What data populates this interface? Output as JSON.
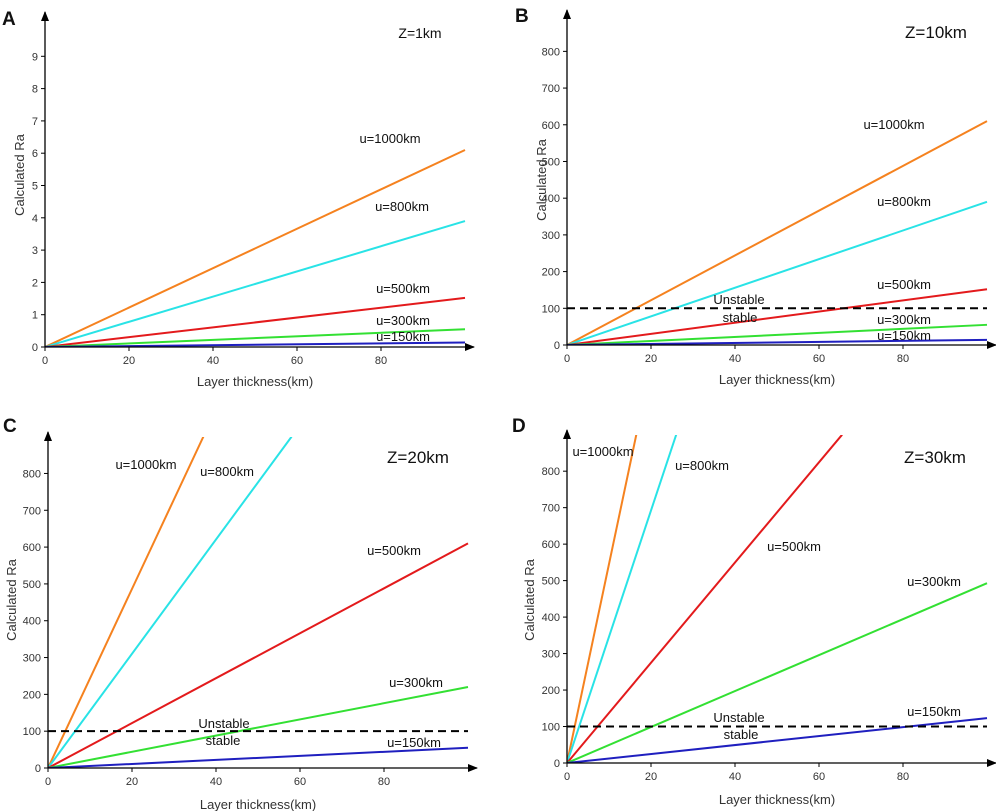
{
  "figure": {
    "axis_color": "#000000",
    "threshold_color": "#000000"
  },
  "chart_data": [
    {
      "type": "line",
      "panel": "A",
      "title": "Z=1km",
      "xlabel": "Layer thickness(km)",
      "ylabel": "Calculated Ra",
      "xlim": [
        0,
        100
      ],
      "ylim": [
        0,
        10
      ],
      "xticks": [
        0,
        20,
        40,
        60,
        80
      ],
      "yticks": [
        0,
        1,
        2,
        3,
        4,
        5,
        6,
        7,
        8,
        9
      ],
      "grid": false,
      "threshold": null,
      "series": [
        {
          "name": "u=1000km",
          "color": "#f5821f",
          "x": [
            0,
            100
          ],
          "y": [
            0,
            6.1
          ]
        },
        {
          "name": "u=800km",
          "color": "#29e3e6",
          "x": [
            0,
            100
          ],
          "y": [
            0,
            3.9
          ]
        },
        {
          "name": "u=500km",
          "color": "#e31a1c",
          "x": [
            0,
            100
          ],
          "y": [
            0,
            1.52
          ]
        },
        {
          "name": "u=300km",
          "color": "#33e033",
          "x": [
            0,
            100
          ],
          "y": [
            0,
            0.55
          ]
        },
        {
          "name": "u=150km",
          "color": "#1f1fbf",
          "x": [
            0,
            100
          ],
          "y": [
            0,
            0.14
          ]
        }
      ]
    },
    {
      "type": "line",
      "panel": "B",
      "title": "Z=10km",
      "xlabel": "Layer thickness(km)",
      "ylabel": "Calculated Ra",
      "xlim": [
        0,
        100
      ],
      "ylim": [
        0,
        880
      ],
      "xticks": [
        0,
        20,
        40,
        60,
        80
      ],
      "yticks": [
        0,
        100,
        200,
        300,
        400,
        500,
        600,
        700,
        800
      ],
      "grid": false,
      "threshold": {
        "value": 100,
        "above": "Unstable",
        "below": "stable"
      },
      "series": [
        {
          "name": "u=1000km",
          "color": "#f5821f",
          "x": [
            0,
            100
          ],
          "y": [
            0,
            610
          ]
        },
        {
          "name": "u=800km",
          "color": "#29e3e6",
          "x": [
            0,
            100
          ],
          "y": [
            0,
            390
          ]
        },
        {
          "name": "u=500km",
          "color": "#e31a1c",
          "x": [
            0,
            100
          ],
          "y": [
            0,
            152
          ]
        },
        {
          "name": "u=300km",
          "color": "#33e033",
          "x": [
            0,
            100
          ],
          "y": [
            0,
            55
          ]
        },
        {
          "name": "u=150km",
          "color": "#1f1fbf",
          "x": [
            0,
            100
          ],
          "y": [
            0,
            14
          ]
        }
      ]
    },
    {
      "type": "line",
      "panel": "C",
      "title": "Z=20km",
      "xlabel": "Layer thickness(km)",
      "ylabel": "Calculated Ra",
      "xlim": [
        0,
        100
      ],
      "ylim": [
        0,
        880
      ],
      "xticks": [
        0,
        20,
        40,
        60,
        80
      ],
      "yticks": [
        0,
        100,
        200,
        300,
        400,
        500,
        600,
        700,
        800
      ],
      "grid": false,
      "threshold": {
        "value": 100,
        "above": "Unstable",
        "below": "stable"
      },
      "series": [
        {
          "name": "u=1000km",
          "color": "#f5821f",
          "x": [
            0,
            37
          ],
          "y": [
            0,
            900
          ]
        },
        {
          "name": "u=800km",
          "color": "#29e3e6",
          "x": [
            0,
            58
          ],
          "y": [
            0,
            900
          ]
        },
        {
          "name": "u=500km",
          "color": "#e31a1c",
          "x": [
            0,
            100
          ],
          "y": [
            0,
            610
          ]
        },
        {
          "name": "u=300km",
          "color": "#33e033",
          "x": [
            0,
            100
          ],
          "y": [
            0,
            220
          ]
        },
        {
          "name": "u=150km",
          "color": "#1f1fbf",
          "x": [
            0,
            100
          ],
          "y": [
            0,
            55
          ]
        }
      ]
    },
    {
      "type": "line",
      "panel": "D",
      "title": "Z=30km",
      "xlabel": "Layer thickness(km)",
      "ylabel": "Calculated Ra",
      "xlim": [
        0,
        100
      ],
      "ylim": [
        0,
        880
      ],
      "xticks": [
        0,
        20,
        40,
        60,
        80
      ],
      "yticks": [
        0,
        100,
        200,
        300,
        400,
        500,
        600,
        700,
        800
      ],
      "grid": false,
      "threshold": {
        "value": 100,
        "above": "Unstable",
        "below": "stable"
      },
      "series": [
        {
          "name": "u=1000km",
          "color": "#f5821f",
          "x": [
            0,
            16.5
          ],
          "y": [
            0,
            900
          ]
        },
        {
          "name": "u=800km",
          "color": "#29e3e6",
          "x": [
            0,
            26
          ],
          "y": [
            0,
            900
          ]
        },
        {
          "name": "u=500km",
          "color": "#e31a1c",
          "x": [
            0,
            65.5
          ],
          "y": [
            0,
            900
          ]
        },
        {
          "name": "u=300km",
          "color": "#33e033",
          "x": [
            0,
            100
          ],
          "y": [
            0,
            493
          ]
        },
        {
          "name": "u=150km",
          "color": "#1f1fbf",
          "x": [
            0,
            100
          ],
          "y": [
            0,
            123
          ]
        }
      ]
    }
  ]
}
